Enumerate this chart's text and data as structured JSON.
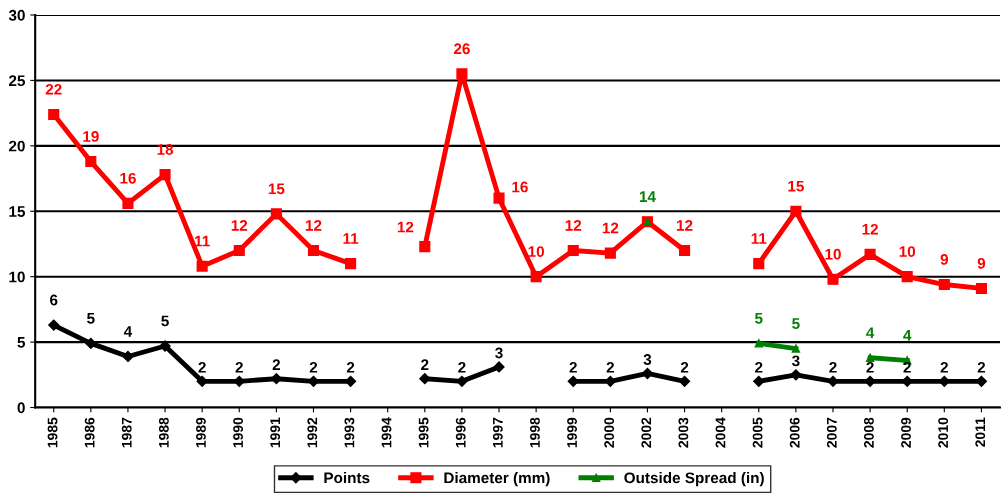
{
  "chart_data": {
    "type": "line",
    "categories": [
      "1985",
      "1986",
      "1987",
      "1988",
      "1989",
      "1990",
      "1991",
      "1992",
      "1993",
      "1994",
      "1995",
      "1996",
      "1997",
      "1998",
      "1999",
      "2000",
      "2002",
      "2003",
      "2004",
      "2005",
      "2006",
      "2007",
      "2008",
      "2009",
      "2010",
      "2011"
    ],
    "series": [
      {
        "name": "Points",
        "color": "#000000",
        "marker": "diamond",
        "values": [
          6.3,
          4.9,
          3.9,
          4.7,
          2,
          2,
          2.2,
          2,
          2,
          null,
          2.2,
          2,
          3.1,
          null,
          2,
          2,
          2.6,
          2,
          null,
          2,
          2.5,
          2,
          2,
          2,
          2,
          2
        ],
        "value_labels": [
          "6",
          "5",
          "4",
          "5",
          "2",
          "2",
          "2",
          "2",
          "2",
          null,
          "2",
          "2",
          "3",
          null,
          "2",
          "2",
          "3",
          "2",
          null,
          "2",
          "3",
          "2",
          "2",
          "2",
          "2",
          "2"
        ]
      },
      {
        "name": "Diameter (mm)",
        "color": "#ff0000",
        "marker": "square",
        "values": [
          22.4,
          18.8,
          15.6,
          17.8,
          10.8,
          12,
          14.8,
          12,
          11,
          null,
          12.3,
          25.5,
          16,
          10,
          12,
          11.8,
          14.2,
          12,
          null,
          11,
          15,
          9.8,
          11.7,
          10,
          9.4,
          9.1
        ],
        "value_labels": [
          "22",
          "19",
          "16",
          "18",
          "11",
          "12",
          "15",
          "12",
          "11",
          null,
          "12",
          "26",
          "16",
          "10",
          "12",
          "12",
          null,
          "12",
          null,
          "11",
          "15",
          "10",
          "12",
          "10",
          "9",
          "9"
        ]
      },
      {
        "name": "Outside Spread (in)",
        "color": "#008000",
        "marker": "triangle",
        "values": [
          null,
          null,
          null,
          null,
          null,
          null,
          null,
          null,
          null,
          null,
          null,
          null,
          null,
          null,
          null,
          null,
          14.2,
          null,
          null,
          4.9,
          4.5,
          null,
          3.8,
          3.6,
          null,
          null
        ],
        "value_labels": [
          null,
          null,
          null,
          null,
          null,
          null,
          null,
          null,
          null,
          null,
          null,
          null,
          null,
          null,
          null,
          null,
          "14",
          null,
          null,
          "5",
          "5",
          null,
          "4",
          "4",
          null,
          null
        ]
      }
    ],
    "ylim": [
      0,
      30
    ],
    "yticks": [
      0,
      5,
      10,
      15,
      20,
      25,
      30
    ],
    "grid": "y",
    "legend": "bottom",
    "line_style": "solid"
  }
}
